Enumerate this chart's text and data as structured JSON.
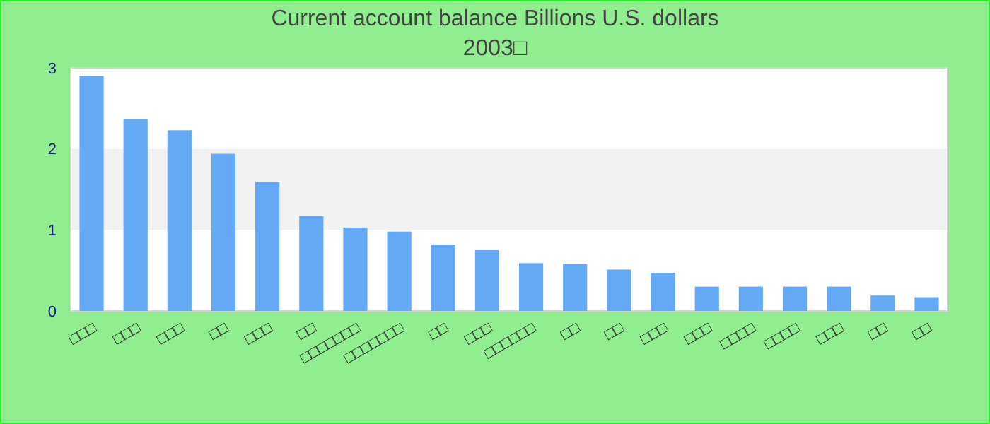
{
  "chart_data": {
    "type": "bar",
    "title": "Current account balance Billions U.S. dollars",
    "subtitle": "2003□",
    "categories": [
      "□□□",
      "□□□",
      "□□□",
      "□□",
      "□□□",
      "□□",
      "□□□□□□□",
      "□□□□□□□",
      "□□",
      "□□□",
      "□□□□□□",
      "□□",
      "□□",
      "□□□",
      "□□□",
      "□□□□",
      "□□□□",
      "□□□",
      "□□",
      "□□"
    ],
    "values": [
      2.9,
      2.37,
      2.23,
      1.94,
      1.59,
      1.17,
      1.03,
      0.98,
      0.82,
      0.75,
      0.59,
      0.58,
      0.51,
      0.47,
      0.3,
      0.3,
      0.3,
      0.3,
      0.19,
      0.17
    ],
    "color": "#63a9f3",
    "ylim": [
      0,
      3
    ],
    "yticks": [
      0,
      1,
      2,
      3
    ],
    "bands": [
      {
        "axis": "y",
        "from": 1,
        "to": 2,
        "color": "#f2f2f2"
      }
    ]
  }
}
